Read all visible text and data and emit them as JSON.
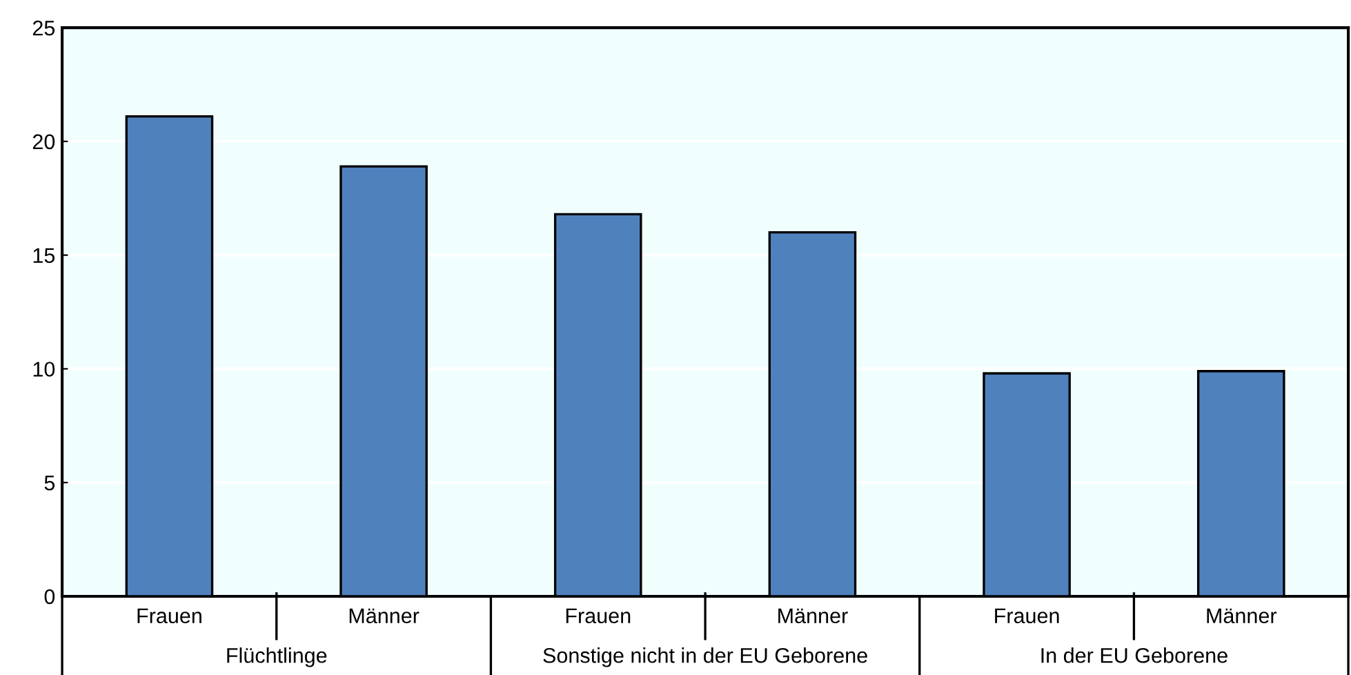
{
  "chart_data": {
    "type": "bar",
    "categories": [
      "Frauen",
      "Männer",
      "Frauen",
      "Männer",
      "Frauen",
      "Männer"
    ],
    "values": [
      21.1,
      18.9,
      16.8,
      16.0,
      9.8,
      9.9
    ],
    "color": "#4f81bd",
    "ylim": [
      0,
      25
    ],
    "yticks": [
      0,
      5,
      10,
      15,
      20,
      25
    ],
    "grid": "y",
    "annotations": [
      "Flüchtlinge",
      "Sonstige nicht in der EU Geborene",
      "In der EU Geborene"
    ]
  }
}
